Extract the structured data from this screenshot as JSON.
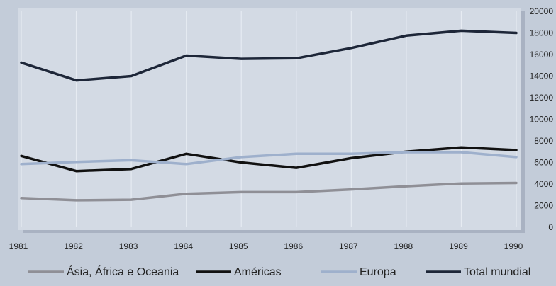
{
  "chart_data": {
    "type": "line",
    "title": "",
    "xlabel": "",
    "ylabel": "",
    "x": [
      "1981",
      "1982",
      "1983",
      "1984",
      "1985",
      "1986",
      "1987",
      "1988",
      "1989",
      "1990"
    ],
    "ylim": [
      0,
      20000
    ],
    "yticks": [
      "0",
      "2000",
      "4000",
      "6000",
      "8000",
      "10000",
      "12000",
      "14000",
      "16000",
      "18000",
      "20000"
    ],
    "grid": "vertical",
    "legend_position": "bottom",
    "series": [
      {
        "name": "Ásia, África e Oceania",
        "color": "#8f8f96",
        "values": [
          2700,
          2500,
          2550,
          3100,
          3250,
          3250,
          3500,
          3800,
          4050,
          4100
        ]
      },
      {
        "name": "Américas",
        "color": "#111111",
        "values": [
          6600,
          5200,
          5400,
          6800,
          6000,
          5500,
          6400,
          7000,
          7400,
          7150
        ]
      },
      {
        "name": "Europa",
        "color": "#9eb0cc",
        "values": [
          5850,
          6050,
          6200,
          5850,
          6500,
          6800,
          6800,
          6950,
          6950,
          6500
        ]
      },
      {
        "name": "Total mundial",
        "color": "#1d2638",
        "values": [
          15250,
          13600,
          14000,
          15900,
          15600,
          15650,
          16600,
          17750,
          18200,
          18000
        ]
      }
    ]
  }
}
